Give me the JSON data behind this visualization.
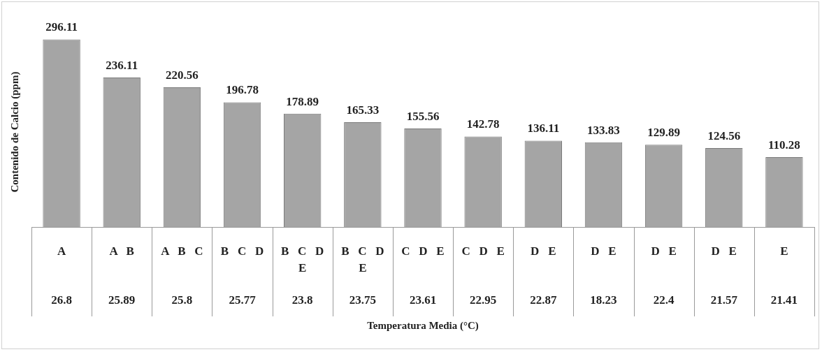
{
  "chart_data": {
    "type": "bar",
    "xlabel": "Temperatura Media (°C)",
    "ylabel": "Contenido de Calcio (ppm)",
    "categories": [
      "26.8",
      "25.89",
      "25.8",
      "25.77",
      "23.8",
      "23.75",
      "23.61",
      "22.95",
      "22.87",
      "18.23",
      "22.4",
      "21.57",
      "21.41"
    ],
    "values": [
      296.11,
      236.11,
      220.56,
      196.78,
      178.89,
      165.33,
      155.56,
      142.78,
      136.11,
      133.83,
      129.89,
      124.56,
      110.28
    ],
    "color": "#a5a5a5",
    "data_labels": true,
    "annotations": [
      "A",
      "A B",
      "A B C",
      "B C D",
      "B C D E",
      "B C D E",
      "C D E",
      "C D E",
      "D E",
      "D E",
      "D E",
      "D E",
      "E"
    ]
  }
}
